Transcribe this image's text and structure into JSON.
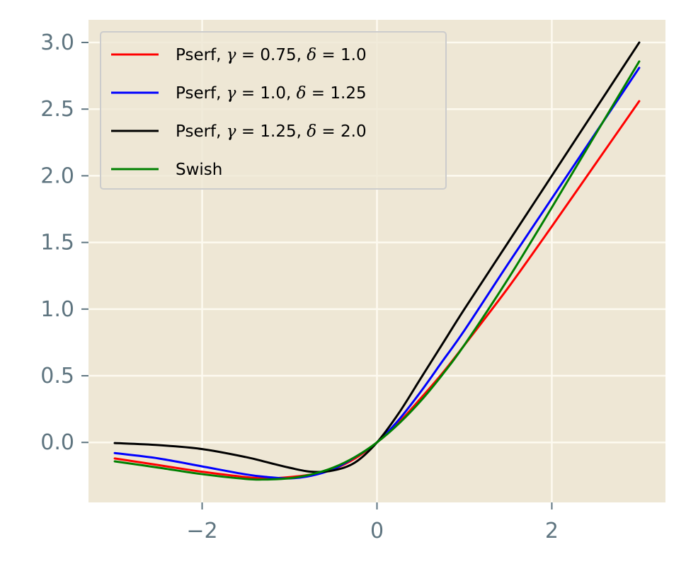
{
  "chart_data": {
    "type": "line",
    "title": "",
    "xlabel": "",
    "ylabel": "",
    "xlim": [
      -3.3,
      3.3
    ],
    "ylim": [
      -0.45,
      3.17
    ],
    "xticks": [
      -2,
      0,
      2
    ],
    "xtick_labels": [
      "−2",
      "0",
      "2"
    ],
    "yticks": [
      0.0,
      0.5,
      1.0,
      1.5,
      2.0,
      2.5,
      3.0
    ],
    "ytick_labels": [
      "0.0",
      "0.5",
      "1.0",
      "1.5",
      "2.0",
      "2.5",
      "3.0"
    ],
    "grid": true,
    "legend_position": "top-left",
    "background": "#eee7d5",
    "grid_color": "#fdfaf0",
    "series": [
      {
        "name": "Pserf, γ = 0.75, δ = 1.0",
        "legend_parts": [
          "Pserf, ",
          "γ",
          " = 0.75, ",
          "δ",
          " = 1.0"
        ],
        "color": "#ff0000",
        "x": [
          -3.0,
          -2.5,
          -2.0,
          -1.5,
          -1.25,
          -1.0,
          -0.75,
          -0.5,
          -0.25,
          0.0,
          0.25,
          0.5,
          0.75,
          1.0,
          1.5,
          2.0,
          2.5,
          3.0
        ],
        "y": [
          -0.12,
          -0.17,
          -0.22,
          -0.26,
          -0.27,
          -0.26,
          -0.24,
          -0.2,
          -0.12,
          0.0,
          0.15,
          0.33,
          0.52,
          0.73,
          1.16,
          1.62,
          2.09,
          2.56
        ]
      },
      {
        "name": "Pserf, γ = 1.0, δ = 1.25",
        "legend_parts": [
          "Pserf, ",
          "γ",
          " = 1.0, ",
          "δ",
          " = 1.25"
        ],
        "color": "#0000ff",
        "x": [
          -3.0,
          -2.5,
          -2.0,
          -1.5,
          -1.25,
          -1.0,
          -0.75,
          -0.5,
          -0.25,
          0.0,
          0.25,
          0.5,
          0.75,
          1.0,
          1.5,
          2.0,
          2.5,
          3.0
        ],
        "y": [
          -0.08,
          -0.12,
          -0.18,
          -0.24,
          -0.26,
          -0.27,
          -0.25,
          -0.2,
          -0.11,
          0.0,
          0.17,
          0.38,
          0.61,
          0.84,
          1.34,
          1.83,
          2.32,
          2.81
        ]
      },
      {
        "name": "Pserf, γ = 1.25, δ = 2.0",
        "legend_parts": [
          "Pserf, ",
          "γ",
          " = 1.25, ",
          "δ",
          " = 2.0"
        ],
        "color": "#000000",
        "x": [
          -3.0,
          -2.5,
          -2.0,
          -1.5,
          -1.25,
          -1.0,
          -0.75,
          -0.5,
          -0.25,
          0.0,
          0.25,
          0.5,
          0.75,
          1.0,
          1.5,
          2.0,
          2.5,
          3.0
        ],
        "y": [
          -0.005,
          -0.02,
          -0.05,
          -0.11,
          -0.15,
          -0.19,
          -0.22,
          -0.21,
          -0.15,
          0.0,
          0.22,
          0.48,
          0.74,
          1.0,
          1.5,
          2.0,
          2.5,
          3.0
        ]
      },
      {
        "name": "Swish",
        "legend_parts": [
          "Swish"
        ],
        "color": "#008000",
        "x": [
          -3.0,
          -2.5,
          -2.0,
          -1.5,
          -1.28,
          -1.0,
          -0.75,
          -0.5,
          -0.25,
          0.0,
          0.25,
          0.5,
          0.75,
          1.0,
          1.5,
          2.0,
          2.5,
          3.0
        ],
        "y": [
          -0.142,
          -0.189,
          -0.238,
          -0.274,
          -0.278,
          -0.269,
          -0.24,
          -0.189,
          -0.109,
          0.0,
          0.141,
          0.311,
          0.51,
          0.731,
          1.227,
          1.762,
          2.311,
          2.858
        ]
      }
    ]
  }
}
